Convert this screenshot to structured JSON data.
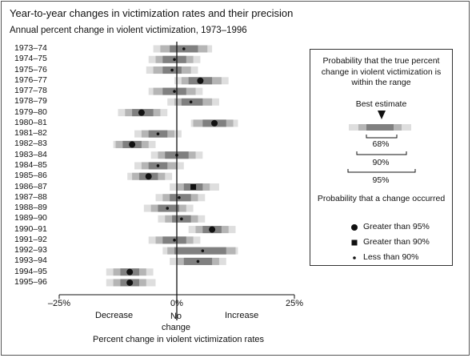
{
  "chart_data": {
    "type": "interval-bar",
    "title": "Year-to-year changes in victimization rates and their precision",
    "subtitle": "Annual percent change in violent victimization, 1973–1996",
    "xlabel": "Percent change in violent victimization rates",
    "xlim": [
      -25,
      25
    ],
    "x_ticks": [
      "–25%",
      "0%",
      "25%"
    ],
    "x_tick_values": [
      -25,
      0,
      25
    ],
    "axis_annotations": {
      "left": "Decrease",
      "center": "No change",
      "right": "Increase"
    },
    "colors": {
      "ci68": "#808080",
      "ci90": "#b5b5b5",
      "ci95": "#dedede",
      "marker": "#111111"
    },
    "rows": [
      {
        "period": "1973–74",
        "estimate": 1.5,
        "ci68": [
          -1.5,
          4.5
        ],
        "ci90": [
          -3.5,
          6.5
        ],
        "ci95": [
          -5,
          7.5
        ],
        "marker": "small"
      },
      {
        "period": "1974–75",
        "estimate": -0.5,
        "ci68": [
          -3,
          2
        ],
        "ci90": [
          -4.5,
          3.5
        ],
        "ci95": [
          -6,
          5
        ],
        "marker": "small"
      },
      {
        "period": "1975–76",
        "estimate": -1,
        "ci68": [
          -3,
          1
        ],
        "ci90": [
          -5,
          3
        ],
        "ci95": [
          -6.5,
          4.5
        ],
        "marker": "small"
      },
      {
        "period": "1976–77",
        "estimate": 5,
        "ci68": [
          2.5,
          7.5
        ],
        "ci90": [
          1,
          9.5
        ],
        "ci95": [
          -0.5,
          11
        ],
        "marker": "large"
      },
      {
        "period": "1977–78",
        "estimate": -0.5,
        "ci68": [
          -3,
          2
        ],
        "ci90": [
          -5,
          4
        ],
        "ci95": [
          -6,
          5.5
        ],
        "marker": "small"
      },
      {
        "period": "1978–79",
        "estimate": 3,
        "ci68": [
          1,
          5.5
        ],
        "ci90": [
          -0.5,
          7.5
        ],
        "ci95": [
          -2,
          9
        ],
        "marker": "small"
      },
      {
        "period": "1979–80",
        "estimate": -7.5,
        "ci68": [
          -9.5,
          -5
        ],
        "ci90": [
          -11,
          -3.5
        ],
        "ci95": [
          -12.5,
          -2
        ],
        "marker": "large"
      },
      {
        "period": "1980–81",
        "estimate": 8,
        "ci68": [
          5.5,
          10.5
        ],
        "ci90": [
          3.5,
          12
        ],
        "ci95": [
          3,
          13
        ],
        "marker": "large"
      },
      {
        "period": "1981–82",
        "estimate": -4,
        "ci68": [
          -6,
          -2
        ],
        "ci90": [
          -7.5,
          -0.5
        ],
        "ci95": [
          -9,
          1
        ],
        "marker": "small"
      },
      {
        "period": "1982–83",
        "estimate": -9.5,
        "ci68": [
          -11.5,
          -7.5
        ],
        "ci90": [
          -13,
          -6
        ],
        "ci95": [
          -13.5,
          -4.5
        ],
        "marker": "large"
      },
      {
        "period": "1983–84",
        "estimate": 0,
        "ci68": [
          -2.5,
          2.5
        ],
        "ci90": [
          -4,
          4
        ],
        "ci95": [
          -5.5,
          5.5
        ],
        "marker": "small"
      },
      {
        "period": "1984–85",
        "estimate": -4,
        "ci68": [
          -6,
          -2
        ],
        "ci90": [
          -7.5,
          0
        ],
        "ci95": [
          -9,
          1.5
        ],
        "marker": "small"
      },
      {
        "period": "1985–86",
        "estimate": -6,
        "ci68": [
          -8,
          -4
        ],
        "ci90": [
          -9.5,
          -2.5
        ],
        "ci95": [
          -10.5,
          -1
        ],
        "marker": "large"
      },
      {
        "period": "1986–87",
        "estimate": 3.5,
        "ci68": [
          1.5,
          5.5
        ],
        "ci90": [
          0,
          7
        ],
        "ci95": [
          -1.5,
          9
        ],
        "marker": "square"
      },
      {
        "period": "1987–88",
        "estimate": 0.5,
        "ci68": [
          -1.5,
          3
        ],
        "ci90": [
          -3,
          4.5
        ],
        "ci95": [
          -4.5,
          6
        ],
        "marker": "small"
      },
      {
        "period": "1988–89",
        "estimate": -2,
        "ci68": [
          -4,
          0.5
        ],
        "ci90": [
          -5.5,
          2
        ],
        "ci95": [
          -7,
          3.5
        ],
        "marker": "small"
      },
      {
        "period": "1989–90",
        "estimate": 1,
        "ci68": [
          -1,
          3
        ],
        "ci90": [
          -2.5,
          4.5
        ],
        "ci95": [
          -4,
          6
        ],
        "marker": "small"
      },
      {
        "period": "1990–91",
        "estimate": 7.5,
        "ci68": [
          5.5,
          9.5
        ],
        "ci90": [
          4,
          11
        ],
        "ci95": [
          2.5,
          12.5
        ],
        "marker": "large"
      },
      {
        "period": "1991–92",
        "estimate": -0.5,
        "ci68": [
          -3,
          2
        ],
        "ci90": [
          -4.5,
          3.5
        ],
        "ci95": [
          -6,
          5
        ],
        "marker": "small"
      },
      {
        "period": "1992–93",
        "estimate": 5.5,
        "ci68": [
          -0.5,
          10.5
        ],
        "ci90": [
          -2,
          12.5
        ],
        "ci95": [
          -3,
          13
        ],
        "marker": "small"
      },
      {
        "period": "1993–94",
        "estimate": 4.5,
        "ci68": [
          1.5,
          7.5
        ],
        "ci90": [
          0,
          9
        ],
        "ci95": [
          -1.5,
          10.5
        ],
        "marker": "small"
      },
      {
        "period": "1994–95",
        "estimate": -10,
        "ci68": [
          -12,
          -8
        ],
        "ci90": [
          -13.5,
          -6.5
        ],
        "ci95": [
          -15,
          -5
        ],
        "marker": "large"
      },
      {
        "period": "1995–96",
        "estimate": -10,
        "ci68": [
          -12,
          -8
        ],
        "ci90": [
          -13.5,
          -6.5
        ],
        "ci95": [
          -15,
          -4.5
        ],
        "marker": "large"
      }
    ]
  },
  "legend": {
    "title": "Probability that the true percent change in violent victimization is within the range",
    "best_estimate": "Best estimate",
    "ranges": [
      "68%",
      "90%",
      "95%"
    ],
    "change_title": "Probability that a change occurred",
    "items": [
      {
        "shape": "large-circle",
        "label": "Greater than 95%"
      },
      {
        "shape": "square",
        "label": "Greater than 90%"
      },
      {
        "shape": "small-circle",
        "label": "Less than 90%"
      }
    ]
  }
}
